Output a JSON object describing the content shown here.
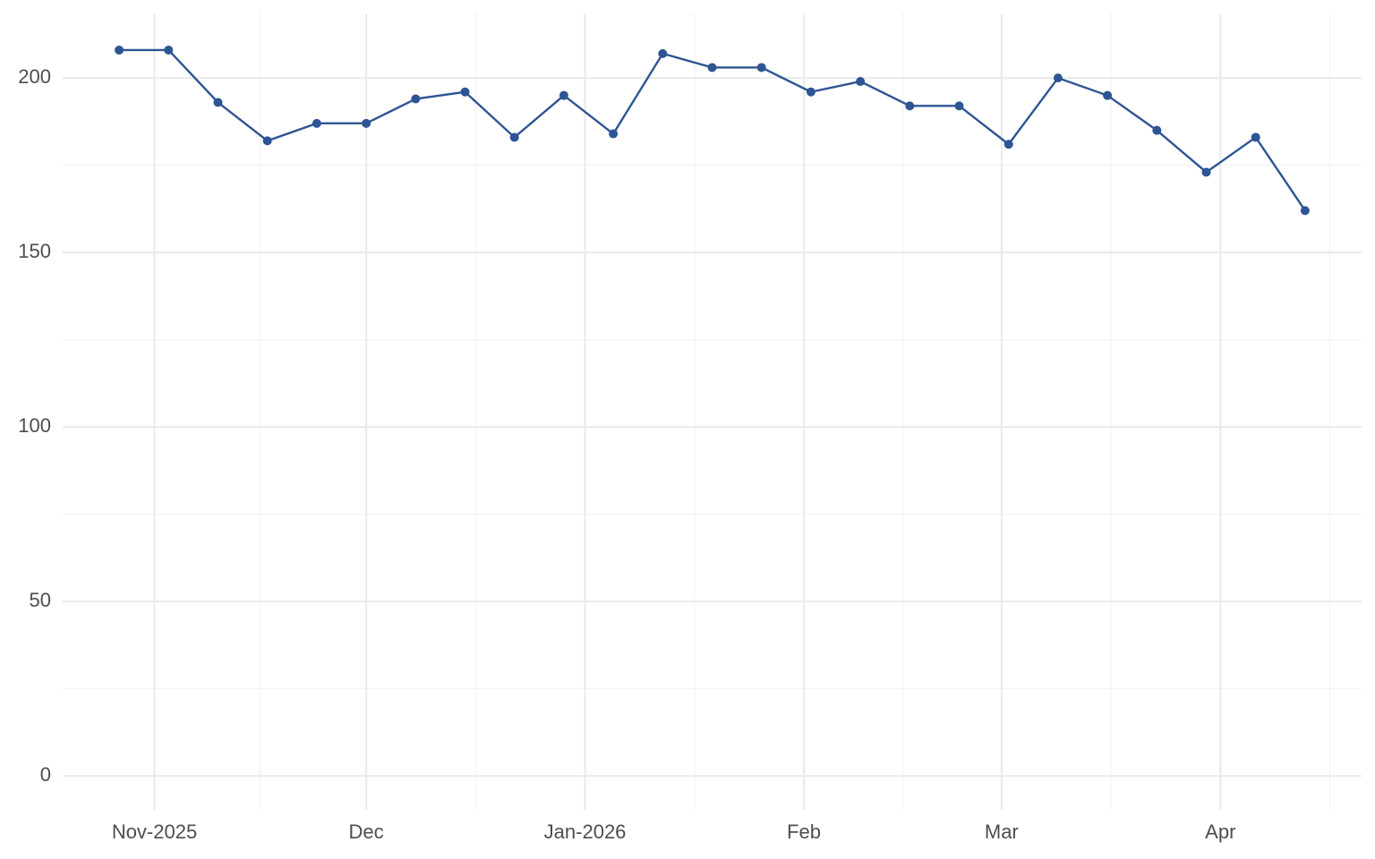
{
  "chart_data": {
    "type": "line",
    "x": [
      "2025-10-27",
      "2025-11-03",
      "2025-11-10",
      "2025-11-17",
      "2025-11-24",
      "2025-12-01",
      "2025-12-08",
      "2025-12-15",
      "2025-12-22",
      "2025-12-29",
      "2026-01-05",
      "2026-01-12",
      "2026-01-19",
      "2026-01-26",
      "2026-02-02",
      "2026-02-09",
      "2026-02-16",
      "2026-02-23",
      "2026-03-02",
      "2026-03-09",
      "2026-03-16",
      "2026-03-23",
      "2026-03-30",
      "2026-04-06",
      "2026-04-13"
    ],
    "values": [
      208,
      208,
      193,
      182,
      187,
      187,
      194,
      196,
      183,
      195,
      184,
      207,
      203,
      203,
      196,
      199,
      192,
      192,
      181,
      200,
      195,
      185,
      173,
      183,
      162
    ],
    "color": "#2e5593",
    "xlim": [
      "2025-10-19",
      "2026-04-21"
    ],
    "xticks": [
      {
        "value": "2025-11-01",
        "label": "Nov-2025"
      },
      {
        "value": "2025-12-01",
        "label": "Dec"
      },
      {
        "value": "2026-01-01",
        "label": "Jan-2026"
      },
      {
        "value": "2026-02-01",
        "label": "Feb"
      },
      {
        "value": "2026-03-01",
        "label": "Mar"
      },
      {
        "value": "2026-04-01",
        "label": "Apr"
      }
    ],
    "ylim": [
      -9.7,
      218.5
    ],
    "yticks": [
      0,
      50,
      100,
      150,
      200
    ],
    "grid": true
  }
}
